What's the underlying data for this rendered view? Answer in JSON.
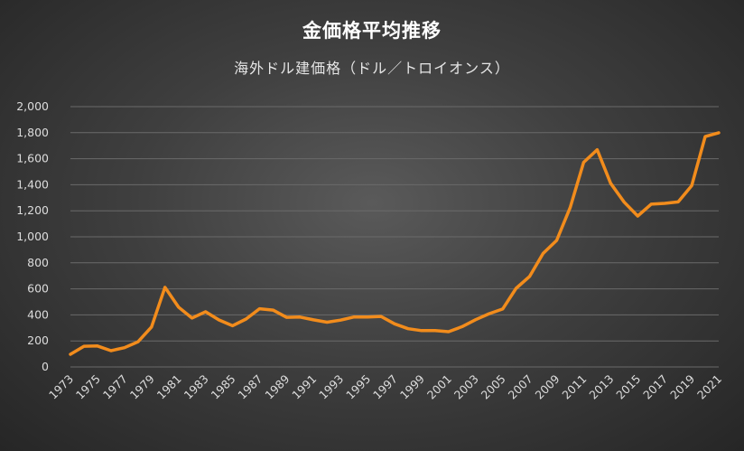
{
  "title": "金価格平均推移",
  "subtitle": "海外ドル建価格（ドル／トロイオンス）",
  "colors": {
    "line": "#f28c1c",
    "grid": "#6a6a6a",
    "text": "#dcdcdc"
  },
  "chart_data": {
    "type": "line",
    "title": "金価格平均推移",
    "subtitle": "海外ドル建価格（ドル／トロイオンス）",
    "xlabel": "",
    "ylabel": "",
    "ylim": [
      0,
      2000
    ],
    "y_ticks": [
      0,
      200,
      400,
      600,
      800,
      1000,
      1200,
      1400,
      1600,
      1800,
      2000
    ],
    "y_tick_labels": [
      "0",
      "200",
      "400",
      "600",
      "800",
      "1,000",
      "1,200",
      "1,400",
      "1,600",
      "1,800",
      "2,000"
    ],
    "x_tick_labels": [
      "1973",
      "1975",
      "1977",
      "1979",
      "1981",
      "1983",
      "1985",
      "1987",
      "1989",
      "1991",
      "1993",
      "1995",
      "1997",
      "1999",
      "2001",
      "2003",
      "2005",
      "2007",
      "2009",
      "2011",
      "2013",
      "2015",
      "2017",
      "2019",
      "2021"
    ],
    "grid": true,
    "legend": "none",
    "x": [
      1973,
      1974,
      1975,
      1976,
      1977,
      1978,
      1979,
      1980,
      1981,
      1982,
      1983,
      1984,
      1985,
      1986,
      1987,
      1988,
      1989,
      1990,
      1991,
      1992,
      1993,
      1994,
      1995,
      1996,
      1997,
      1998,
      1999,
      2000,
      2001,
      2002,
      2003,
      2004,
      2005,
      2006,
      2007,
      2008,
      2009,
      2010,
      2011,
      2012,
      2013,
      2014,
      2015,
      2016,
      2017,
      2018,
      2019,
      2020,
      2021
    ],
    "y": [
      97,
      159,
      161,
      125,
      148,
      193,
      307,
      612,
      460,
      376,
      424,
      361,
      317,
      368,
      447,
      437,
      381,
      383,
      362,
      344,
      360,
      384,
      384,
      388,
      331,
      294,
      279,
      279,
      271,
      310,
      363,
      409,
      445,
      604,
      696,
      872,
      972,
      1225,
      1572,
      1669,
      1411,
      1266,
      1160,
      1251,
      1257,
      1268,
      1393,
      1770,
      1799
    ]
  }
}
